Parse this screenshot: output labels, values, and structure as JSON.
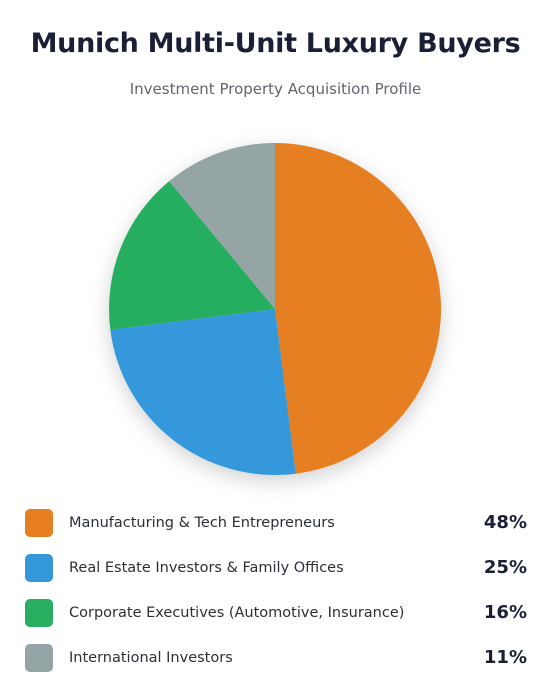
{
  "chart_data": {
    "type": "pie",
    "title": "Munich Multi-Unit Luxury Buyers",
    "subtitle": "Investment Property Acquisition Profile",
    "slices": [
      {
        "label": "Manufacturing & Tech Entrepreneurs",
        "value": 48,
        "display": "48%",
        "color": "#e67e22"
      },
      {
        "label": "Real Estate Investors & Family Offices",
        "value": 25,
        "display": "25%",
        "color": "#3498db"
      },
      {
        "label": "Corporate Executives (Automotive, Insurance)",
        "value": 16,
        "display": "16%",
        "color": "#27ae60"
      },
      {
        "label": "International Investors",
        "value": 11,
        "display": "11%",
        "color": "#95a5a6"
      }
    ],
    "legend_position": "bottom"
  }
}
